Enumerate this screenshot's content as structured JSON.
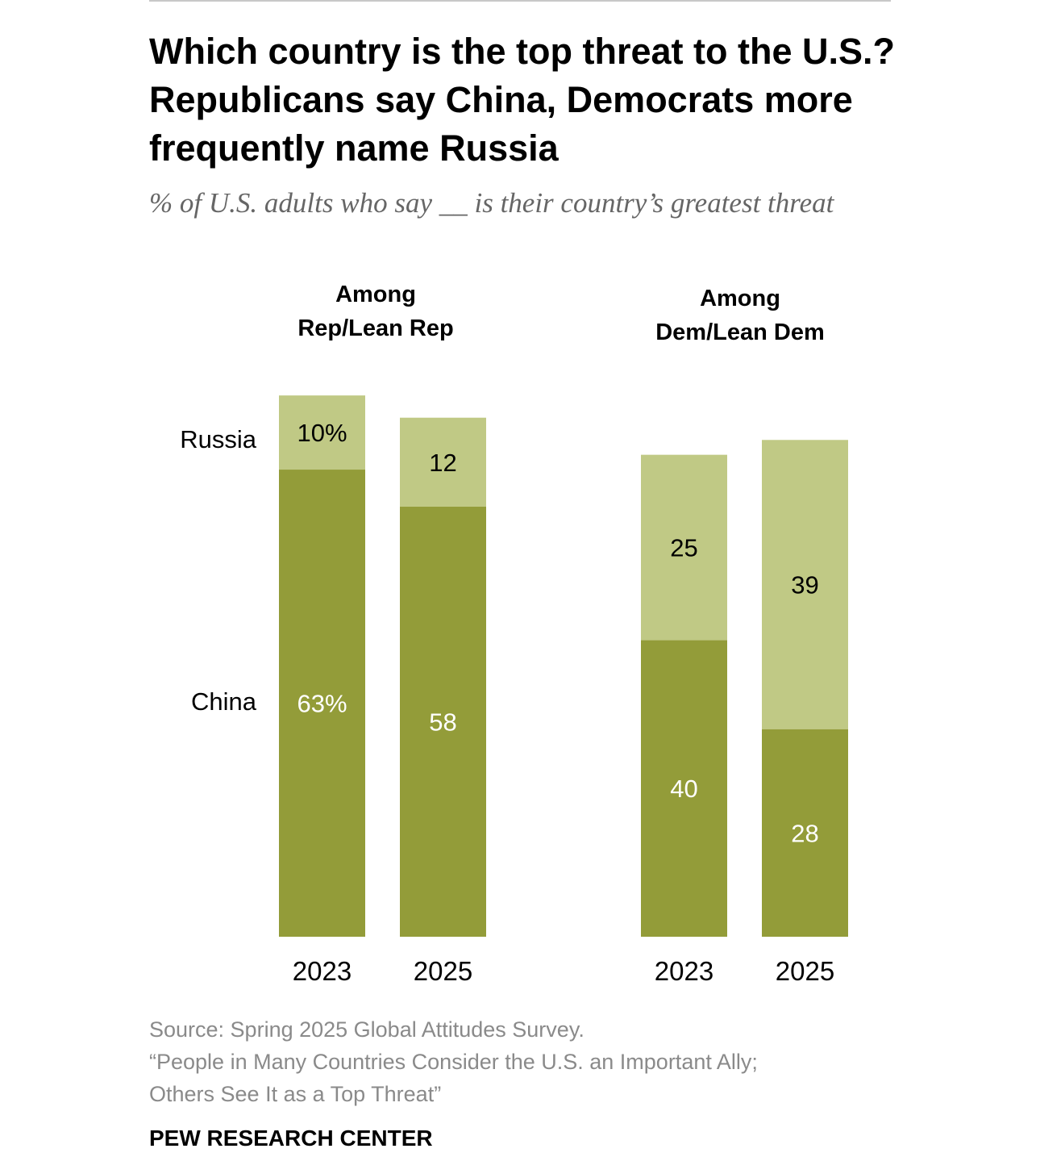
{
  "title": "Which country is the top threat to the U.S.? Republicans say China, Democrats more frequently name Russia",
  "subtitle": "% of U.S. adults who say __ is their country’s greatest threat",
  "source_line": "Source: Spring 2025 Global Attitudes Survey.",
  "report_line1": "“People in Many Countries Consider the U.S. an Important Ally;",
  "report_line2": "Others See It as a Top Threat”",
  "organization": "PEW RESEARCH CENTER",
  "colors": {
    "china": "#939c39",
    "russia": "#c0c985",
    "text_dark": "#000000",
    "text_light": "#ffffff",
    "muted": "#8a8a8a"
  },
  "chart_data": {
    "type": "bar",
    "stacked": true,
    "ylim": [
      0,
      100
    ],
    "grid": false,
    "groups": [
      {
        "title_lines": [
          "Among",
          "Rep/Lean Rep"
        ],
        "categories": [
          "2023",
          "2025"
        ],
        "series": [
          {
            "name": "China",
            "values": [
              63,
              58
            ],
            "labels": [
              "63%",
              "58"
            ]
          },
          {
            "name": "Russia",
            "values": [
              10,
              12
            ],
            "labels": [
              "10%",
              "12"
            ]
          }
        ]
      },
      {
        "title_lines": [
          "Among",
          "Dem/Lean Dem"
        ],
        "categories": [
          "2023",
          "2025"
        ],
        "series": [
          {
            "name": "China",
            "values": [
              40,
              28
            ],
            "labels": [
              "40",
              "28"
            ]
          },
          {
            "name": "Russia",
            "values": [
              25,
              39
            ],
            "labels": [
              "25",
              "39"
            ]
          }
        ]
      }
    ]
  }
}
